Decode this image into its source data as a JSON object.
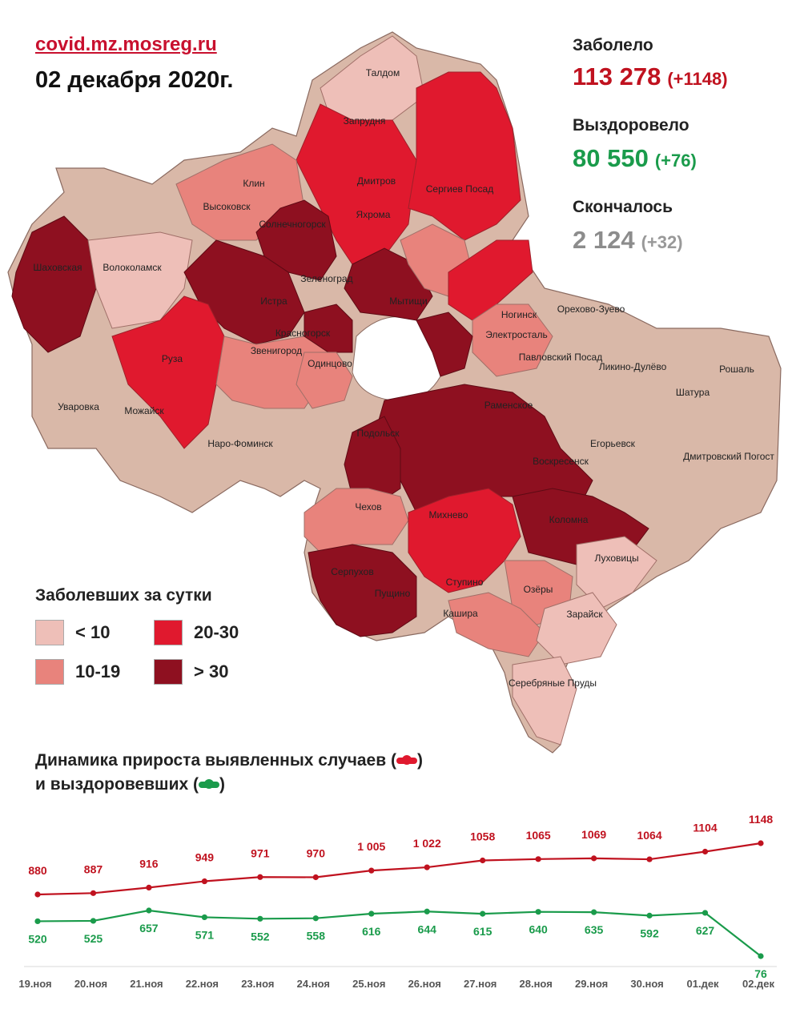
{
  "header": {
    "site": "covid.mz.mosreg.ru",
    "date": "02 декабря 2020г."
  },
  "stats": {
    "infected_label": "Заболело",
    "infected_value": "113 278",
    "infected_delta": "(+1148)",
    "recovered_label": "Выздоровело",
    "recovered_value": "80 550",
    "recovered_delta": "(+76)",
    "deaths_label": "Скончалось",
    "deaths_value": "2 124",
    "deaths_delta": "(+32)"
  },
  "colors": {
    "infected": "#c0121f",
    "recovered": "#1a9b4b",
    "deaths": "#8c8c8c",
    "lt10": "#eebfb8",
    "r10_19": "#e8837c",
    "r20_30": "#e0192e",
    "gt30": "#8e1020",
    "base": "#d9b8a8"
  },
  "legend": {
    "title": "Заболевших за сутки",
    "items": [
      {
        "label": "< 10",
        "color": "#eebfb8"
      },
      {
        "label": "20-30",
        "color": "#e0192e"
      },
      {
        "label": "10-19",
        "color": "#e8837c"
      },
      {
        "label": "> 30",
        "color": "#8e1020"
      }
    ]
  },
  "map": {
    "places": [
      "Талдом",
      "Запрудня",
      "Клин",
      "Высоковск",
      "Дмитров",
      "Яхрома",
      "Сергиев Посад",
      "Солнечногорск",
      "Шаховская",
      "Волоколамск",
      "Зеленоград",
      "Истра",
      "Мытищи",
      "Красногорск",
      "Ногинск",
      "Орехово-Зуево",
      "Электросталь",
      "Павловский Посад",
      "Ликино-Дулёво",
      "Рошаль",
      "Руза",
      "Звенигород",
      "Одинцово",
      "Шатура",
      "Раменское",
      "Уваровка",
      "Можайск",
      "Наро-Фоминск",
      "Егорьевск",
      "Дмитровский Погост",
      "Подольск",
      "Воскресенск",
      "Чехов",
      "Михнево",
      "Коломна",
      "Серпухов",
      "Пущино",
      "Ступино",
      "Луховицы",
      "Озёры",
      "Кашира",
      "Зарайск",
      "Серебряные Пруды"
    ]
  },
  "chart": {
    "title_line1": "Динамика прироста выявленных случаев (",
    "title_line2": "и выздоровевших (",
    "close_paren": ")"
  },
  "chart_data": {
    "type": "line",
    "categories": [
      "19.ноя",
      "20.ноя",
      "21.ноя",
      "22.ноя",
      "23.ноя",
      "24.ноя",
      "25.ноя",
      "26.ноя",
      "27.ноя",
      "28.ноя",
      "29.ноя",
      "30.ноя",
      "01.дек",
      "02.дек"
    ],
    "series": [
      {
        "values": [
          880,
          887,
          916,
          949,
          971,
          970,
          1005,
          1022,
          1058,
          1065,
          1069,
          1064,
          1104,
          1148
        ],
        "labels": [
          "880",
          "887",
          "916",
          "949",
          "971",
          "970",
          "1 005",
          "1 022",
          "1058",
          "1065",
          "1069",
          "1064",
          "1104",
          "1148"
        ],
        "color": "#c0121f"
      },
      {
        "values": [
          520,
          525,
          657,
          571,
          552,
          558,
          616,
          644,
          615,
          640,
          635,
          592,
          627,
          76
        ],
        "labels": [
          "520",
          "525",
          "657",
          "571",
          "552",
          "558",
          "616",
          "644",
          "615",
          "640",
          "635",
          "592",
          "627",
          "76"
        ],
        "color": "#1a9b4b"
      }
    ]
  }
}
